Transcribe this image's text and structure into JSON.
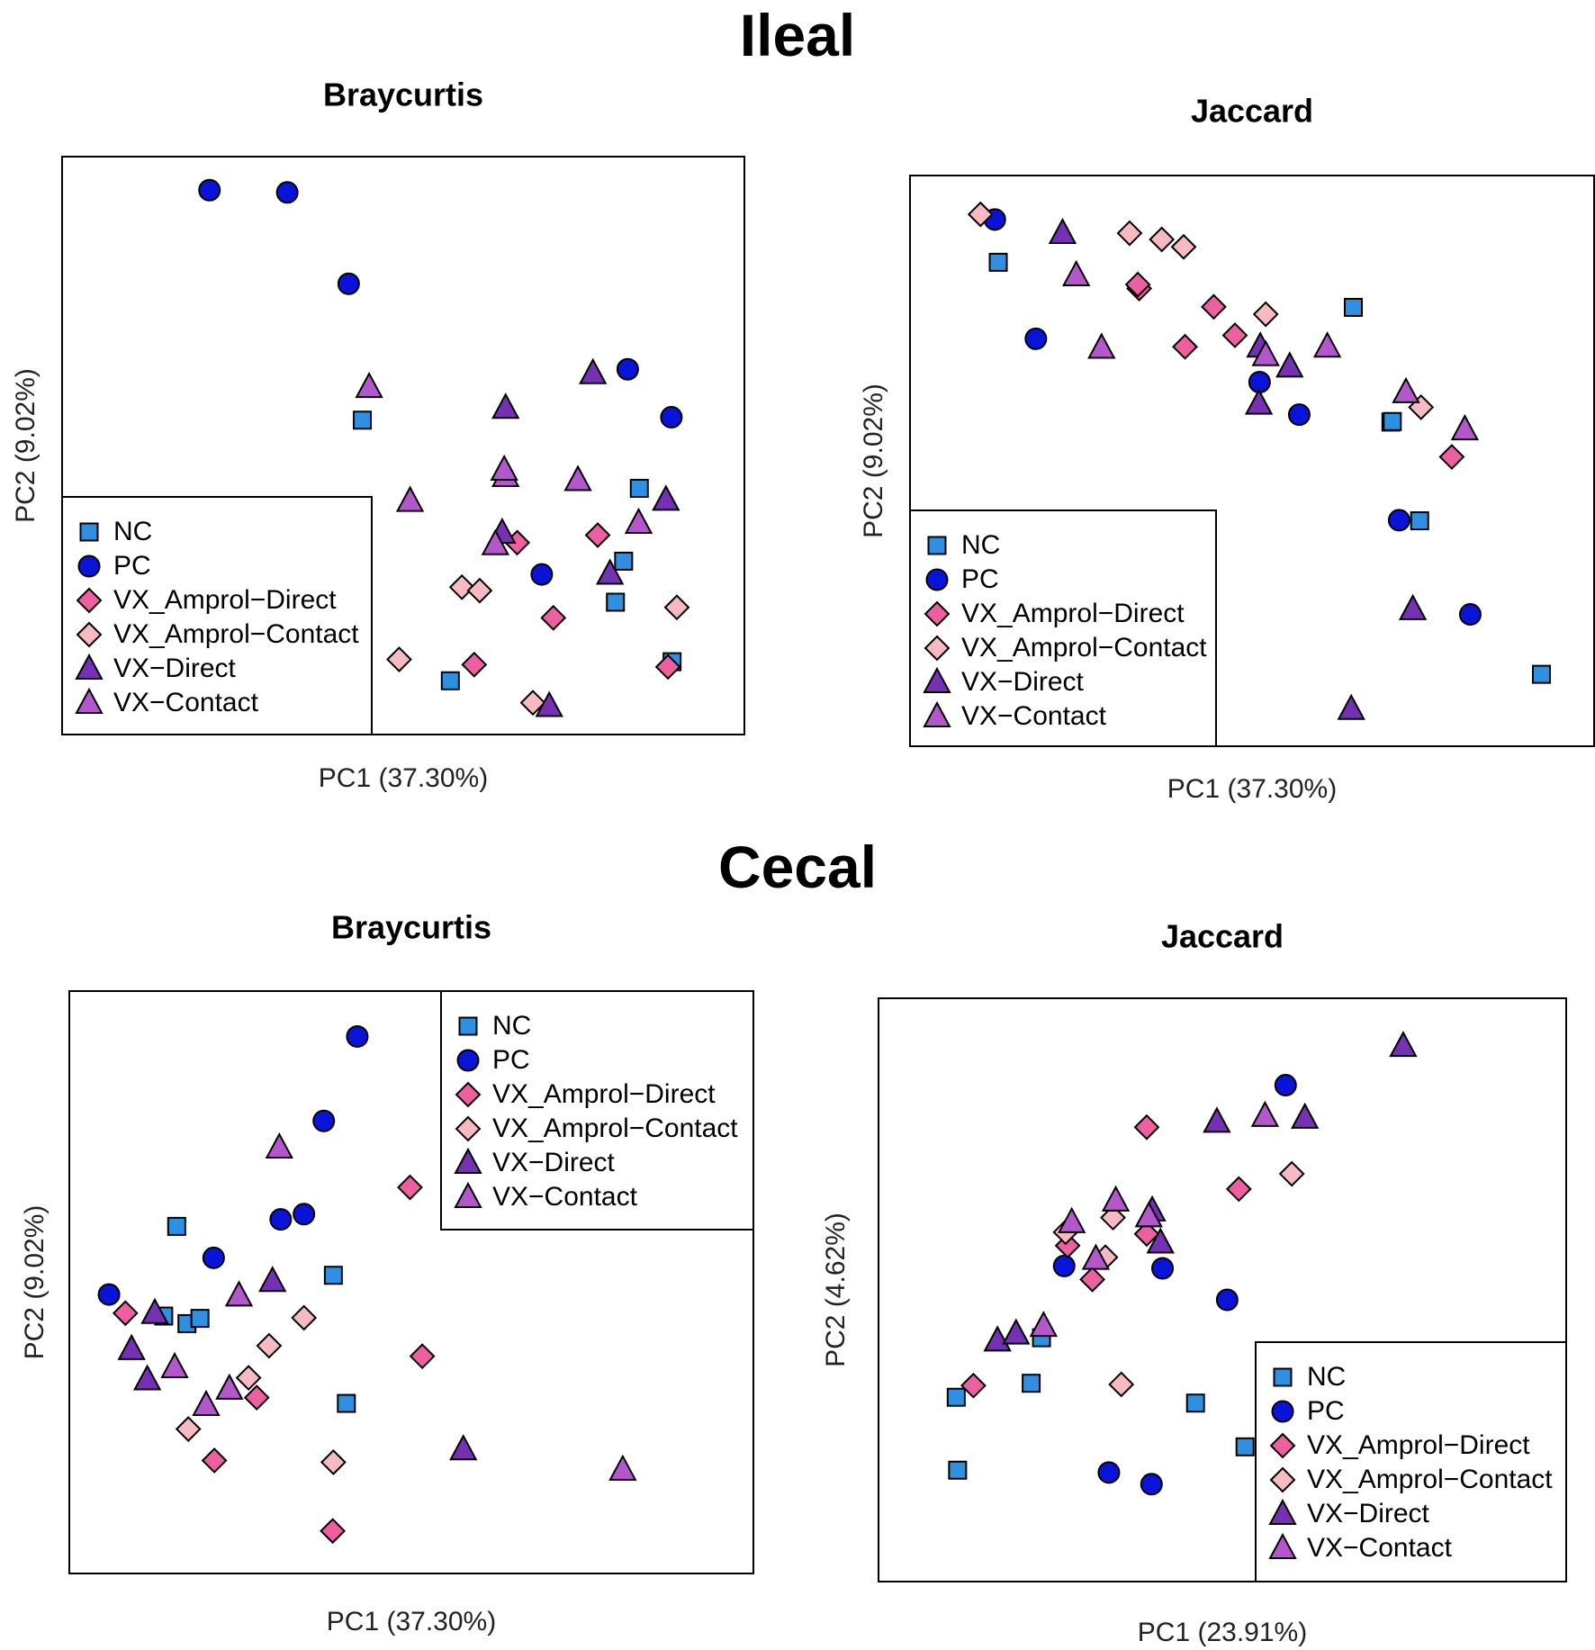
{
  "sections": {
    "top": "Ileal",
    "bottom": "Cecal"
  },
  "groups": [
    {
      "key": "NC",
      "label": "NC",
      "shape": "square",
      "color": "#2f8fe0"
    },
    {
      "key": "PC",
      "label": "PC",
      "shape": "circle",
      "color": "#0a14d9"
    },
    {
      "key": "AD",
      "label": "VX_Amprol−Direct",
      "shape": "diamond",
      "color": "#ee5fa0"
    },
    {
      "key": "AC",
      "label": "VX_Amprol−Contact",
      "shape": "diamond",
      "color": "#f7b9c2"
    },
    {
      "key": "VD",
      "label": "VX−Direct",
      "shape": "triangle",
      "color": "#7530b3"
    },
    {
      "key": "VC",
      "label": "VX−Contact",
      "shape": "triangle",
      "color": "#b457cc"
    }
  ],
  "chart_data": [
    {
      "type": "scatter",
      "section": "Ileal",
      "title": "Braycurtis",
      "xlabel": "PC1 (37.30%)",
      "ylabel": "PC2 (9.02%)",
      "xlim": [
        0,
        100
      ],
      "ylim": [
        0,
        100
      ],
      "legend": "bottom-left",
      "points": {
        "NC": [
          [
            44.0,
            54.4
          ],
          [
            56.9,
            9.3
          ],
          [
            84.6,
            42.6
          ],
          [
            82.3,
            30.0
          ],
          [
            81.1,
            22.9
          ],
          [
            89.4,
            12.6
          ]
        ],
        "PC": [
          [
            21.6,
            94.2
          ],
          [
            33.0,
            93.8
          ],
          [
            42.0,
            78.0
          ],
          [
            82.9,
            63.2
          ],
          [
            89.3,
            54.9
          ],
          [
            70.3,
            27.7
          ]
        ],
        "AD": [
          [
            66.7,
            33.2
          ],
          [
            78.5,
            34.5
          ],
          [
            72.0,
            20.2
          ],
          [
            60.4,
            12.1
          ],
          [
            88.8,
            11.7
          ]
        ],
        "AC": [
          [
            58.6,
            25.5
          ],
          [
            61.2,
            24.9
          ],
          [
            49.4,
            13.0
          ],
          [
            69.0,
            5.5
          ],
          [
            90.1,
            22.0
          ]
        ],
        "VD": [
          [
            77.8,
            62.5
          ],
          [
            65.0,
            56.5
          ],
          [
            64.5,
            34.9
          ],
          [
            80.3,
            27.8
          ],
          [
            88.5,
            40.6
          ],
          [
            71.4,
            4.9
          ]
        ],
        "VC": [
          [
            45.0,
            60.1
          ],
          [
            51.0,
            40.4
          ],
          [
            65.0,
            44.7
          ],
          [
            75.6,
            44.0
          ],
          [
            84.5,
            36.6
          ],
          [
            63.5,
            32.9
          ],
          [
            64.8,
            45.8
          ]
        ]
      }
    },
    {
      "type": "scatter",
      "section": "Ileal",
      "title": "Jaccard",
      "xlabel": "PC1 (37.30%)",
      "ylabel": "PC2 (9.02%)",
      "xlim": [
        0,
        100
      ],
      "ylim": [
        0,
        100
      ],
      "legend": "bottom-left",
      "points": {
        "NC": [
          [
            12.9,
            84.8
          ],
          [
            64.8,
            76.9
          ],
          [
            70.3,
            56.8
          ],
          [
            70.5,
            56.9
          ],
          [
            74.5,
            39.5
          ],
          [
            92.3,
            12.6
          ]
        ],
        "PC": [
          [
            12.4,
            92.3
          ],
          [
            18.4,
            71.4
          ],
          [
            51.1,
            63.8
          ],
          [
            56.9,
            58.1
          ],
          [
            71.5,
            39.6
          ],
          [
            81.9,
            23.1
          ]
        ],
        "AD": [
          [
            33.5,
            80.2
          ],
          [
            33.3,
            80.9
          ],
          [
            44.4,
            77.0
          ],
          [
            47.5,
            72.0
          ],
          [
            40.2,
            70.0
          ],
          [
            79.2,
            50.7
          ]
        ],
        "AC": [
          [
            10.3,
            93.2
          ],
          [
            32.1,
            89.9
          ],
          [
            36.8,
            88.8
          ],
          [
            40.0,
            87.5
          ],
          [
            52.0,
            75.7
          ],
          [
            74.7,
            59.4
          ]
        ],
        "VD": [
          [
            22.3,
            89.9
          ],
          [
            51.2,
            70.0
          ],
          [
            51.0,
            60.0
          ],
          [
            55.5,
            66.5
          ],
          [
            73.5,
            24.0
          ],
          [
            64.5,
            6.5
          ]
        ],
        "VC": [
          [
            24.3,
            82.5
          ],
          [
            28.0,
            69.8
          ],
          [
            52.0,
            68.5
          ],
          [
            61.0,
            70.0
          ],
          [
            72.5,
            62.0
          ],
          [
            81.1,
            55.5
          ]
        ]
      }
    },
    {
      "type": "scatter",
      "section": "Cecal",
      "title": "Braycurtis",
      "xlabel": "PC1 (37.30%)",
      "ylabel": "PC2 (9.02%)",
      "xlim": [
        0,
        100
      ],
      "ylim": [
        0,
        100
      ],
      "legend": "top-right",
      "points": {
        "NC": [
          [
            15.7,
            59.6
          ],
          [
            13.8,
            44.2
          ],
          [
            17.2,
            42.9
          ],
          [
            19.1,
            43.8
          ],
          [
            38.6,
            51.2
          ],
          [
            40.5,
            29.2
          ]
        ],
        "PC": [
          [
            42.1,
            92.2
          ],
          [
            37.2,
            77.7
          ],
          [
            21.1,
            54.2
          ],
          [
            30.9,
            60.8
          ],
          [
            34.3,
            61.7
          ],
          [
            5.8,
            47.9
          ]
        ],
        "AD": [
          [
            8.2,
            44.7
          ],
          [
            49.8,
            66.3
          ],
          [
            21.2,
            19.4
          ],
          [
            27.4,
            30.2
          ],
          [
            51.6,
            37.3
          ],
          [
            38.5,
            7.3
          ]
        ],
        "AC": [
          [
            34.3,
            43.9
          ],
          [
            29.2,
            39.1
          ],
          [
            26.2,
            33.6
          ],
          [
            17.4,
            24.8
          ],
          [
            38.6,
            19.1
          ]
        ],
        "VD": [
          [
            9.1,
            38.5
          ],
          [
            11.4,
            33.3
          ],
          [
            12.5,
            44.7
          ],
          [
            29.7,
            50.2
          ],
          [
            57.6,
            21.3
          ]
        ],
        "VC": [
          [
            30.7,
            73.1
          ],
          [
            24.8,
            47.7
          ],
          [
            15.4,
            35.4
          ],
          [
            20.0,
            28.9
          ],
          [
            23.4,
            31.7
          ],
          [
            80.9,
            17.8
          ]
        ]
      }
    },
    {
      "type": "scatter",
      "section": "Cecal",
      "title": "Jaccard",
      "xlabel": "PC1 (23.91%)",
      "ylabel": "PC2 (4.62%)",
      "xlim": [
        0,
        100
      ],
      "ylim": [
        0,
        100
      ],
      "legend": "bottom-right",
      "points": {
        "NC": [
          [
            11.3,
            31.6
          ],
          [
            11.5,
            19.1
          ],
          [
            22.2,
            34.0
          ],
          [
            23.7,
            41.8
          ],
          [
            46.1,
            30.6
          ],
          [
            53.3,
            23.1
          ]
        ],
        "PC": [
          [
            59.2,
            85.1
          ],
          [
            27.0,
            54.1
          ],
          [
            41.3,
            53.7
          ],
          [
            50.7,
            48.3
          ],
          [
            33.5,
            18.7
          ],
          [
            39.7,
            16.7
          ]
        ],
        "AD": [
          [
            39.0,
            77.9
          ],
          [
            13.8,
            33.6
          ],
          [
            27.5,
            57.6
          ],
          [
            31.1,
            51.8
          ],
          [
            39.0,
            59.6
          ],
          [
            52.4,
            67.3
          ]
        ],
        "AC": [
          [
            34.1,
            62.4
          ],
          [
            33.0,
            55.6
          ],
          [
            35.3,
            33.8
          ],
          [
            60.1,
            69.9
          ],
          [
            27.2,
            59.9
          ]
        ],
        "VD": [
          [
            49.2,
            78.8
          ],
          [
            62.0,
            79.5
          ],
          [
            39.8,
            63.6
          ],
          [
            41.0,
            58.1
          ],
          [
            17.3,
            41.3
          ],
          [
            20.0,
            42.5
          ],
          [
            76.3,
            91.8
          ]
        ],
        "VC": [
          [
            28.1,
            61.6
          ],
          [
            31.6,
            55.3
          ],
          [
            34.5,
            65.3
          ],
          [
            39.3,
            62.6
          ],
          [
            24.0,
            43.8
          ],
          [
            56.2,
            79.8
          ]
        ]
      }
    }
  ]
}
